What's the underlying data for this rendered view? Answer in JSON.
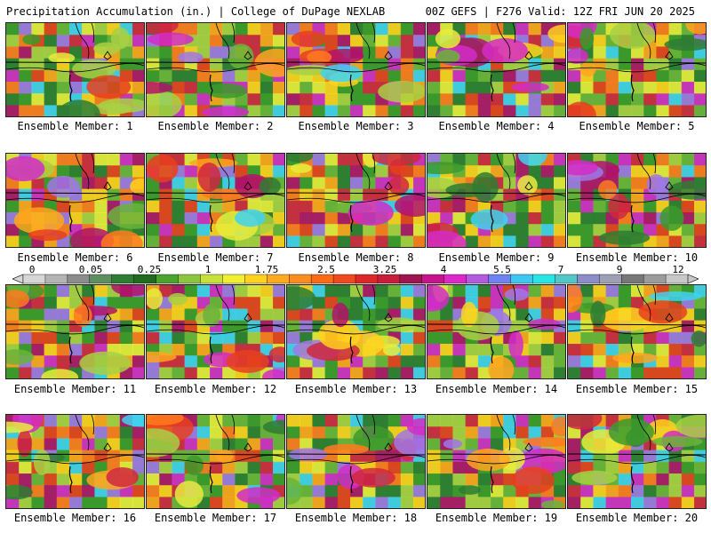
{
  "header": {
    "left": "Precipitation Accumulation (in.) | College of DuPage NEXLAB",
    "right": "00Z GEFS | F276 Valid: 12Z FRI JUN 20 2025"
  },
  "members": [
    {
      "label": "Ensemble Member: 1"
    },
    {
      "label": "Ensemble Member: 2"
    },
    {
      "label": "Ensemble Member: 3"
    },
    {
      "label": "Ensemble Member: 4"
    },
    {
      "label": "Ensemble Member: 5"
    },
    {
      "label": "Ensemble Member: 6"
    },
    {
      "label": "Ensemble Member: 7"
    },
    {
      "label": "Ensemble Member: 8"
    },
    {
      "label": "Ensemble Member: 9"
    },
    {
      "label": "Ensemble Member: 10"
    },
    {
      "label": "Ensemble Member: 11"
    },
    {
      "label": "Ensemble Member: 12"
    },
    {
      "label": "Ensemble Member: 13"
    },
    {
      "label": "Ensemble Member: 14"
    },
    {
      "label": "Ensemble Member: 15"
    },
    {
      "label": "Ensemble Member: 16"
    },
    {
      "label": "Ensemble Member: 17"
    },
    {
      "label": "Ensemble Member: 18"
    },
    {
      "label": "Ensemble Member: 19"
    },
    {
      "label": "Ensemble Member: 20"
    }
  ],
  "colorbar": {
    "labels": [
      "0",
      "0.05",
      "0.25",
      "1",
      "1.75",
      "2.5",
      "3.25",
      "4",
      "5.5",
      "7",
      "9",
      "12"
    ],
    "colors": [
      "#d6d6d6",
      "#b4b4b4",
      "#8c8c8c",
      "#5e8f5e",
      "#2e7d32",
      "#1f6b1f",
      "#4da32f",
      "#8cc63f",
      "#c8e03a",
      "#f0f030",
      "#ffd21e",
      "#ffaa1e",
      "#ff8c1e",
      "#ff6a14",
      "#f04a1e",
      "#dc2828",
      "#c81e3c",
      "#a01450",
      "#c8148c",
      "#dc28c8",
      "#b45adc",
      "#6e82f0",
      "#3cc8f0",
      "#28e6e6",
      "#50c8c8",
      "#8c8cc8",
      "#a0a0b4",
      "#787878",
      "#9c9c9c",
      "#c8c8c8"
    ]
  }
}
